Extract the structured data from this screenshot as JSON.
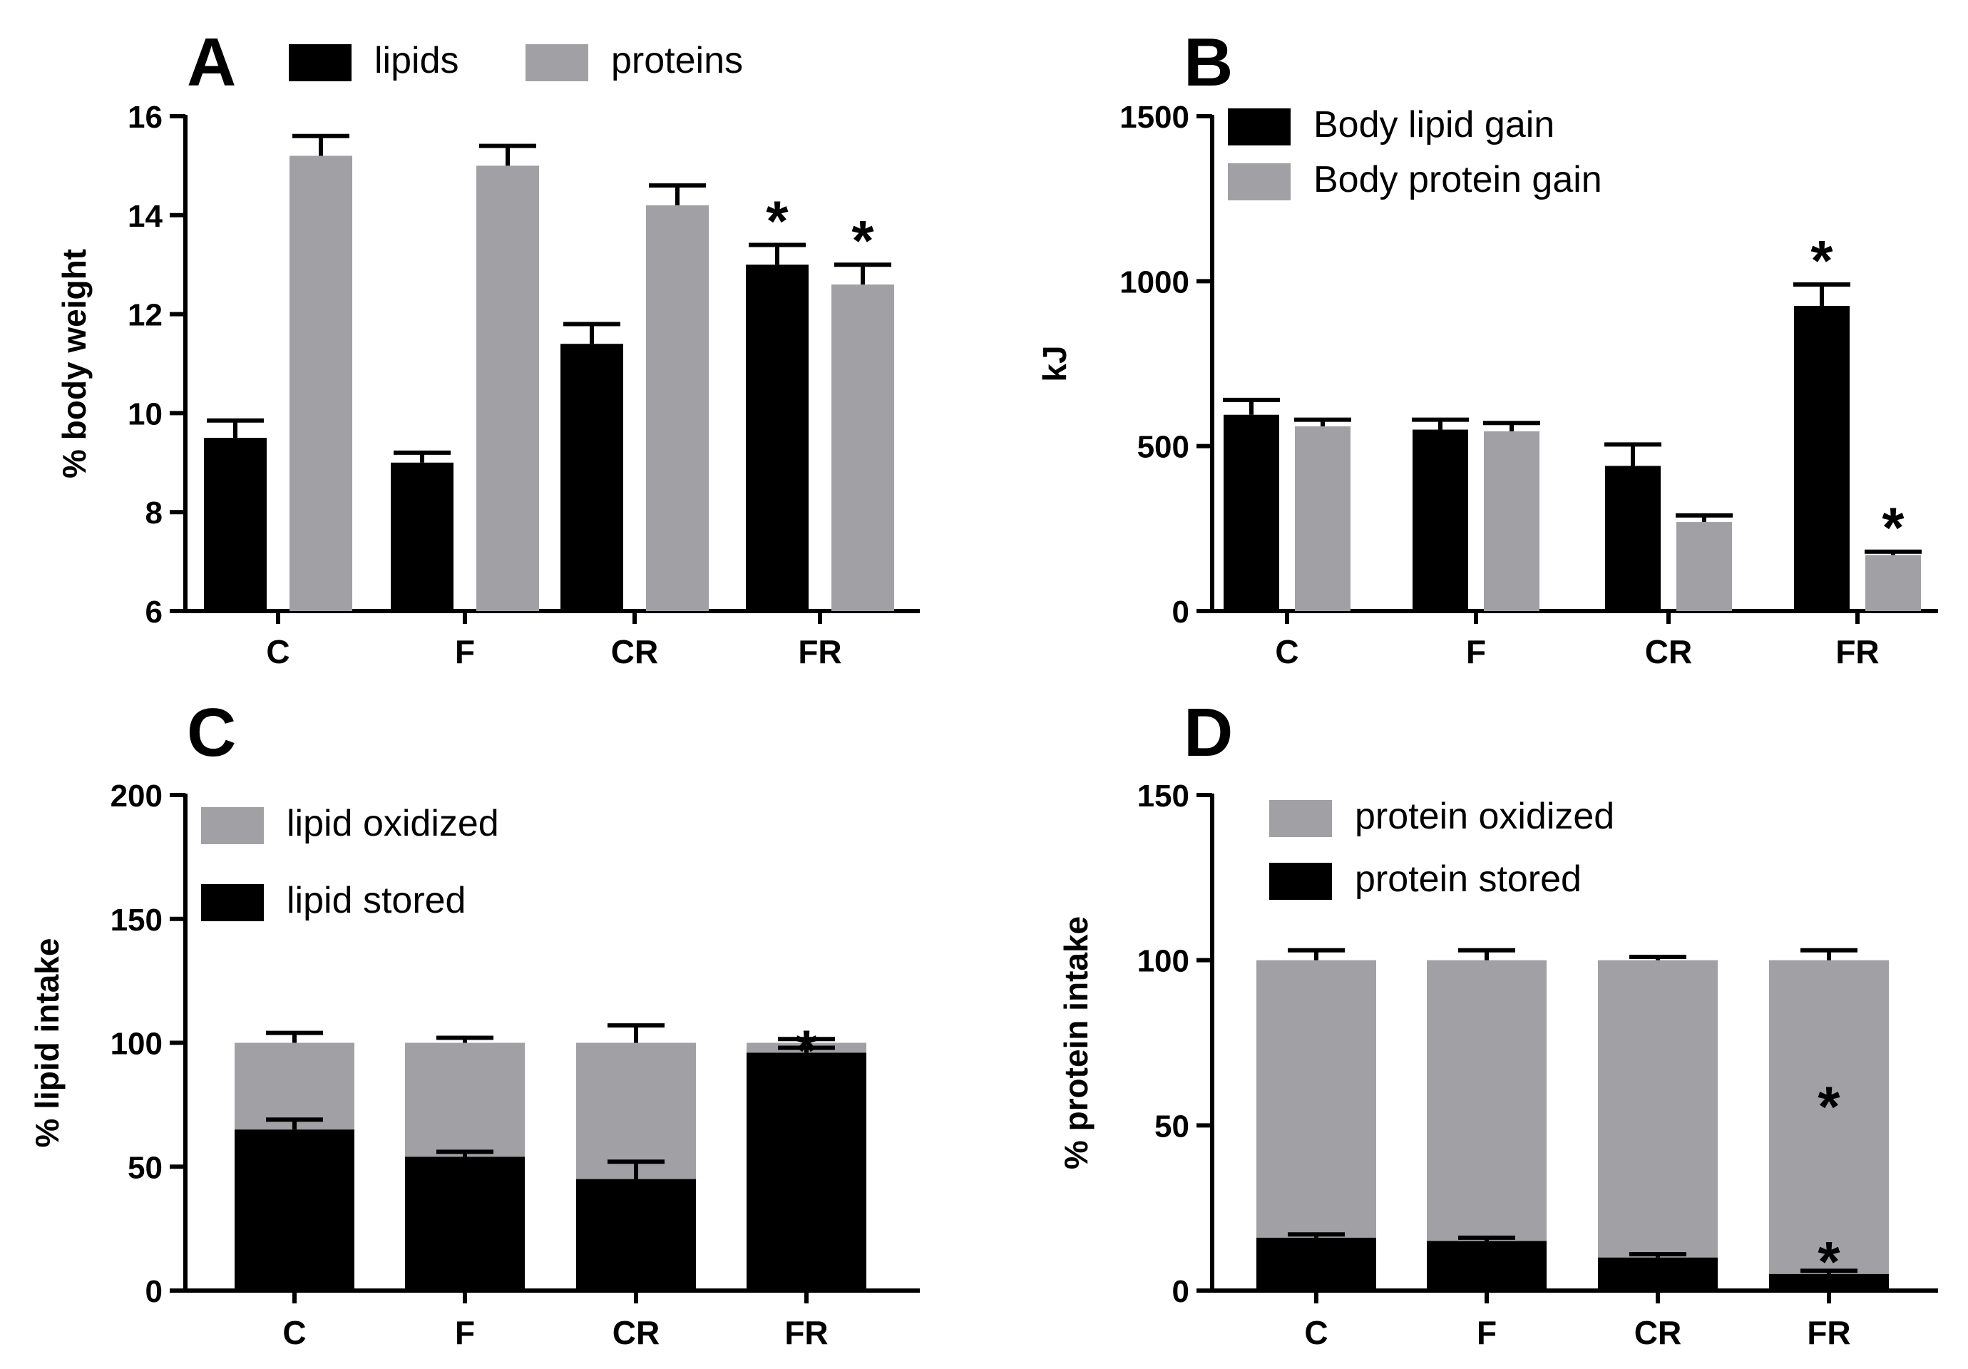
{
  "colors": {
    "dark": "#000000",
    "gray": "#a1a0a5",
    "axis": "#000000"
  },
  "chart_data": [
    {
      "panel": "A",
      "type": "bar",
      "ylabel": "% body weight",
      "xlabel": "",
      "ylim": [
        6,
        16
      ],
      "yticks": [
        6,
        8,
        10,
        12,
        14,
        16
      ],
      "categories": [
        "C",
        "F",
        "CR",
        "FR"
      ],
      "legend_position": "top",
      "series": [
        {
          "name": "lipids",
          "color": "#000000",
          "values": [
            9.5,
            9.0,
            11.4,
            13.0
          ],
          "errors": [
            0.35,
            0.2,
            0.4,
            0.4
          ]
        },
        {
          "name": "proteins",
          "color": "#a1a0a5",
          "values": [
            15.2,
            15.0,
            14.2,
            12.6
          ],
          "errors": [
            0.4,
            0.4,
            0.4,
            0.4
          ]
        }
      ],
      "annotations": [
        {
          "series": 0,
          "category": 3,
          "text": "*"
        },
        {
          "series": 1,
          "category": 3,
          "text": "*"
        }
      ]
    },
    {
      "panel": "B",
      "type": "bar",
      "ylabel": "kJ",
      "xlabel": "",
      "ylim": [
        0,
        1500
      ],
      "yticks": [
        0,
        500,
        1000,
        1500
      ],
      "categories": [
        "C",
        "F",
        "CR",
        "FR"
      ],
      "legend_position": "top-left",
      "series": [
        {
          "name": "Body lipid gain",
          "color": "#000000",
          "values": [
            595,
            550,
            440,
            925
          ],
          "errors": [
            45,
            30,
            65,
            65
          ]
        },
        {
          "name": "Body protein gain",
          "color": "#a1a0a5",
          "values": [
            560,
            545,
            270,
            170
          ],
          "errors": [
            20,
            25,
            20,
            10
          ]
        }
      ],
      "annotations": [
        {
          "series": 0,
          "category": 3,
          "text": "*"
        },
        {
          "series": 1,
          "category": 3,
          "text": "*"
        }
      ]
    },
    {
      "panel": "C",
      "type": "stacked_bar",
      "ylabel": "% lipid intake",
      "xlabel": "",
      "ylim": [
        0,
        200
      ],
      "yticks": [
        0,
        50,
        100,
        150,
        200
      ],
      "categories": [
        "C",
        "F",
        "CR",
        "FR"
      ],
      "legend_position": "top-left",
      "series": [
        {
          "name": "lipid oxidized",
          "color": "#a1a0a5",
          "values": [
            35,
            46,
            55,
            4
          ],
          "errors": [
            4,
            2,
            7,
            1.5
          ]
        },
        {
          "name": "lipid stored",
          "color": "#000000",
          "values": [
            65,
            54,
            45,
            96
          ],
          "errors": [
            4,
            2,
            7,
            2
          ]
        }
      ],
      "annotations": [
        {
          "category": 3,
          "at_value": 100,
          "text": "*"
        }
      ]
    },
    {
      "panel": "D",
      "type": "stacked_bar",
      "ylabel": "% protein intake",
      "xlabel": "",
      "ylim": [
        0,
        150
      ],
      "yticks": [
        0,
        50,
        100,
        150
      ],
      "categories": [
        "C",
        "F",
        "CR",
        "FR"
      ],
      "legend_position": "top-left",
      "series": [
        {
          "name": "protein oxidized",
          "color": "#a1a0a5",
          "values": [
            84,
            85,
            90,
            95
          ],
          "errors": [
            3,
            3,
            1,
            3
          ]
        },
        {
          "name": "protein stored",
          "color": "#000000",
          "values": [
            16,
            15,
            10,
            5
          ],
          "errors": [
            1,
            1,
            1,
            1
          ]
        }
      ],
      "annotations": [
        {
          "category": 3,
          "at_value": 58,
          "text": "*"
        },
        {
          "category": 3,
          "at_value": 11,
          "text": "*"
        }
      ]
    }
  ]
}
